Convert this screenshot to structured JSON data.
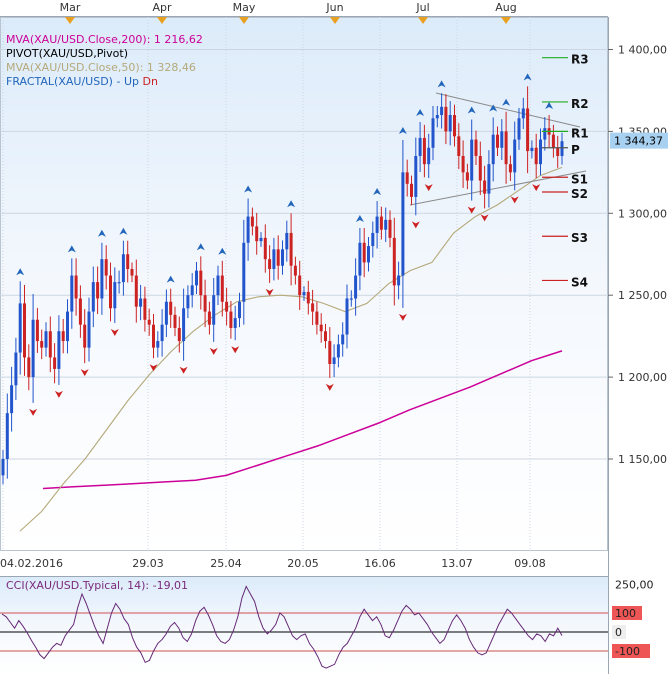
{
  "chart_data": [
    {
      "type": "candlestick",
      "instrument": "XAU/USD",
      "month_labels": [
        "Mar",
        "Apr",
        "May",
        "Jun",
        "Jul",
        "Aug"
      ],
      "date_labels": [
        "04.02.2016",
        "29.03",
        "25.04",
        "20.05",
        "16.06",
        "13.07",
        "09.08"
      ],
      "ylim": [
        1100,
        1425
      ],
      "y_ticks": [
        1150,
        1200,
        1250,
        1300,
        1350,
        1400
      ],
      "y_tick_labels": [
        "1 150,00",
        "1 200,00",
        "1 250,00",
        "1 300,00",
        "1 350,00",
        "1 400,00"
      ],
      "last_price": 1344.37,
      "last_price_label": "1 344,37",
      "legend": [
        {
          "text": "MVA(XAU/USD.Close,200): 1 216,62",
          "color": "#cc0099"
        },
        {
          "text": "PIVOT(XAU/USD,Pivot)",
          "color": "#000000"
        },
        {
          "text": "MVA(XAU/USD.Close,50): 1 328,46",
          "color": "#b5a97a"
        },
        {
          "text": "FRACTAL(XAU/USD) - ",
          "color": "#2266bb"
        },
        {
          "text": "Up",
          "color": "#2266bb"
        },
        {
          "text": "Dn",
          "color": "#cc2222"
        }
      ],
      "pivots": [
        {
          "label": "R3",
          "value": 1395,
          "color": "#22aa22"
        },
        {
          "label": "R2",
          "value": 1368,
          "color": "#22aa22"
        },
        {
          "label": "R1",
          "value": 1350,
          "color": "#22aa22"
        },
        {
          "label": "P",
          "value": 1340,
          "color": "#555555"
        },
        {
          "label": "S1",
          "value": 1322,
          "color": "#cc2222"
        },
        {
          "label": "S2",
          "value": 1313,
          "color": "#cc2222"
        },
        {
          "label": "S3",
          "value": 1286,
          "color": "#cc2222"
        },
        {
          "label": "S4",
          "value": 1259,
          "color": "#cc2222"
        }
      ],
      "closes": [
        1150,
        1178,
        1195,
        1215,
        1245,
        1212,
        1200,
        1235,
        1222,
        1218,
        1228,
        1212,
        1205,
        1228,
        1222,
        1240,
        1262,
        1248,
        1232,
        1218,
        1240,
        1258,
        1248,
        1272,
        1262,
        1242,
        1258,
        1258,
        1275,
        1266,
        1262,
        1243,
        1248,
        1235,
        1232,
        1218,
        1222,
        1232,
        1246,
        1238,
        1230,
        1222,
        1242,
        1250,
        1256,
        1265,
        1250,
        1240,
        1232,
        1250,
        1262,
        1246,
        1240,
        1230,
        1236,
        1246,
        1282,
        1298,
        1292,
        1283,
        1285,
        1272,
        1266,
        1278,
        1268,
        1278,
        1288,
        1268,
        1262,
        1250,
        1252,
        1245,
        1240,
        1232,
        1228,
        1222,
        1208,
        1212,
        1220,
        1226,
        1248,
        1248,
        1262,
        1282,
        1270,
        1280,
        1288,
        1298,
        1290,
        1296,
        1285,
        1256,
        1262,
        1325,
        1318,
        1310,
        1335,
        1346,
        1330,
        1340,
        1358,
        1360,
        1365,
        1350,
        1360,
        1347,
        1335,
        1325,
        1320,
        1345,
        1335,
        1320,
        1312,
        1330,
        1348,
        1340,
        1350,
        1330,
        1325,
        1345,
        1358,
        1364,
        1338,
        1340,
        1330,
        1345,
        1352,
        1348,
        1340,
        1335,
        1344
      ],
      "ma200": [
        1132,
        1133,
        1134,
        1135,
        1136,
        1137,
        1140,
        1146,
        1152,
        1158,
        1165,
        1172,
        1180,
        1187,
        1194,
        1202,
        1210,
        1216
      ],
      "ma50": [
        1106,
        1118,
        1135,
        1150,
        1168,
        1186,
        1202,
        1216,
        1228,
        1238,
        1246,
        1249,
        1250,
        1249,
        1245,
        1240,
        1245,
        1257,
        1265,
        1270,
        1288,
        1298,
        1305,
        1314,
        1323,
        1328
      ]
    },
    {
      "type": "line",
      "legend": "CCI(XAU/USD.Typical, 14): -19,01",
      "ylim": [
        -200,
        260
      ],
      "y_tick_labels": [
        "250,00",
        "100",
        "0",
        "-100"
      ],
      "levels": [
        100,
        0,
        -100
      ],
      "values": [
        95,
        80,
        50,
        20,
        60,
        30,
        -5,
        -45,
        -80,
        -120,
        -140,
        -110,
        -80,
        -60,
        -70,
        -20,
        10,
        40,
        130,
        200,
        150,
        90,
        30,
        -20,
        -60,
        20,
        100,
        150,
        120,
        70,
        40,
        -30,
        -80,
        -110,
        -160,
        -150,
        -100,
        -60,
        -40,
        -10,
        30,
        50,
        20,
        -30,
        -50,
        -10,
        60,
        110,
        130,
        90,
        40,
        -20,
        -50,
        -60,
        -40,
        10,
        80,
        180,
        240,
        200,
        160,
        80,
        20,
        -10,
        10,
        40,
        100,
        80,
        30,
        -20,
        -40,
        -20,
        -10,
        -60,
        -90,
        -130,
        -180,
        -190,
        -180,
        -170,
        -120,
        -80,
        -60,
        -20,
        20,
        80,
        120,
        90,
        60,
        80,
        40,
        -20,
        -30,
        10,
        60,
        110,
        140,
        120,
        90,
        100,
        70,
        40,
        0,
        -30,
        -60,
        -40,
        10,
        60,
        90,
        60,
        20,
        -40,
        -80,
        -110,
        -120,
        -110,
        -60,
        -10,
        40,
        80,
        120,
        100,
        70,
        40,
        10,
        -20,
        -40,
        -10,
        -20,
        -50,
        -10,
        -20,
        20,
        -19
      ]
    }
  ]
}
